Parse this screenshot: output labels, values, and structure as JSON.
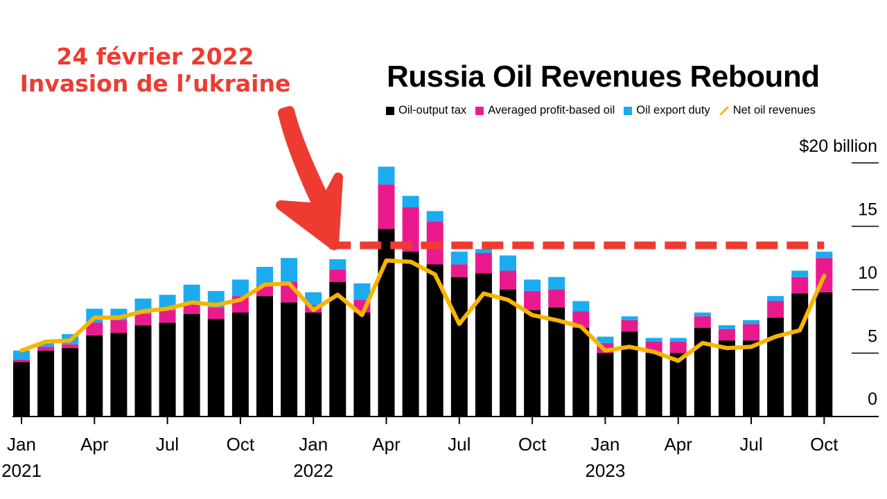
{
  "title": "Russia Oil Revenues Rebound",
  "annotation": {
    "line1": "24 février 2022",
    "line2": "Invasion de l’ukraine",
    "color": "#ee3b32"
  },
  "colors": {
    "oil_output_tax": "#000000",
    "profit_based": "#ea1a8e",
    "export_duty": "#1aacef",
    "net_revenue": "#f7b500",
    "reference_line": "#ee3b32"
  },
  "chart_data": {
    "type": "bar",
    "title": "Russia Oil Revenues Rebound",
    "y_unit_label": "$20 billion",
    "ylim": [
      0,
      20
    ],
    "y_ticks": [
      "0",
      "5",
      "10",
      "15",
      "$20 billion"
    ],
    "y_tick_values": [
      0,
      5,
      10,
      15,
      20
    ],
    "x_tick_labels": [
      {
        "month": "Jan",
        "year": "2021",
        "index": 0
      },
      {
        "month": "Apr",
        "year": "",
        "index": 3
      },
      {
        "month": "Jul",
        "year": "",
        "index": 6
      },
      {
        "month": "Oct",
        "year": "",
        "index": 9
      },
      {
        "month": "Jan",
        "year": "2022",
        "index": 12
      },
      {
        "month": "Apr",
        "year": "",
        "index": 15
      },
      {
        "month": "Jul",
        "year": "",
        "index": 18
      },
      {
        "month": "Oct",
        "year": "",
        "index": 21
      },
      {
        "month": "Jan",
        "year": "2023",
        "index": 24
      },
      {
        "month": "Apr",
        "year": "",
        "index": 27
      },
      {
        "month": "Jul",
        "year": "",
        "index": 30
      },
      {
        "month": "Oct",
        "year": "",
        "index": 33
      }
    ],
    "categories": [
      "2021-01",
      "2021-02",
      "2021-03",
      "2021-04",
      "2021-05",
      "2021-06",
      "2021-07",
      "2021-08",
      "2021-09",
      "2021-10",
      "2021-11",
      "2021-12",
      "2022-01",
      "2022-02",
      "2022-03",
      "2022-04",
      "2022-05",
      "2022-06",
      "2022-07",
      "2022-08",
      "2022-09",
      "2022-10",
      "2022-11",
      "2022-12",
      "2023-01",
      "2023-02",
      "2023-03",
      "2023-04",
      "2023-05",
      "2023-06",
      "2023-07",
      "2023-08",
      "2023-09",
      "2023-10"
    ],
    "series": [
      {
        "name": "Oil-output tax",
        "kind": "bar",
        "values": [
          4.3,
          5.2,
          5.4,
          6.4,
          6.6,
          7.2,
          7.4,
          8.1,
          7.7,
          8.2,
          9.5,
          9.0,
          8.2,
          10.6,
          8.2,
          14.8,
          13.0,
          12.0,
          11.0,
          11.3,
          10.0,
          8.4,
          8.6,
          7.0,
          5.0,
          6.7,
          5.0,
          5.0,
          7.0,
          6.0,
          6.0,
          7.8,
          9.7,
          9.8
        ]
      },
      {
        "name": "Averaged profit-based oil",
        "kind": "bar",
        "values": [
          0.2,
          0.3,
          0.3,
          1.0,
          1.0,
          0.9,
          1.0,
          0.9,
          0.9,
          1.3,
          0.8,
          1.6,
          0.6,
          1.0,
          1.0,
          3.5,
          3.5,
          3.4,
          1.0,
          1.6,
          1.5,
          1.5,
          1.4,
          1.3,
          0.8,
          0.9,
          0.9,
          0.9,
          0.9,
          0.9,
          1.3,
          1.3,
          1.3,
          2.7
        ]
      },
      {
        "name": "Oil export duty",
        "kind": "bar",
        "values": [
          0.7,
          0.3,
          0.8,
          1.1,
          0.9,
          1.2,
          1.2,
          1.4,
          1.3,
          1.3,
          1.5,
          1.9,
          1.0,
          0.8,
          1.3,
          1.4,
          0.9,
          0.8,
          1.0,
          0.3,
          1.2,
          0.9,
          1.0,
          0.8,
          0.5,
          0.3,
          0.3,
          0.3,
          0.3,
          0.3,
          0.3,
          0.4,
          0.5,
          0.5
        ]
      },
      {
        "name": "Net oil revenues",
        "kind": "line",
        "values": [
          5.2,
          5.9,
          6.0,
          7.8,
          7.8,
          8.3,
          8.5,
          9.0,
          8.8,
          9.2,
          10.4,
          10.5,
          8.4,
          9.6,
          8.0,
          12.3,
          12.2,
          11.2,
          7.3,
          9.7,
          9.2,
          8.0,
          7.6,
          7.1,
          5.2,
          5.5,
          5.1,
          4.4,
          5.8,
          5.4,
          5.5,
          6.3,
          6.8,
          11.1
        ]
      }
    ],
    "reference_line": {
      "style": "dashed",
      "y": 13.5,
      "from_index": 13,
      "to_index": 33
    },
    "legend": [
      "Oil-output tax",
      "Averaged profit-based oil",
      "Oil export duty",
      "Net oil revenues"
    ],
    "legend_position": "top-right",
    "grid": false
  }
}
